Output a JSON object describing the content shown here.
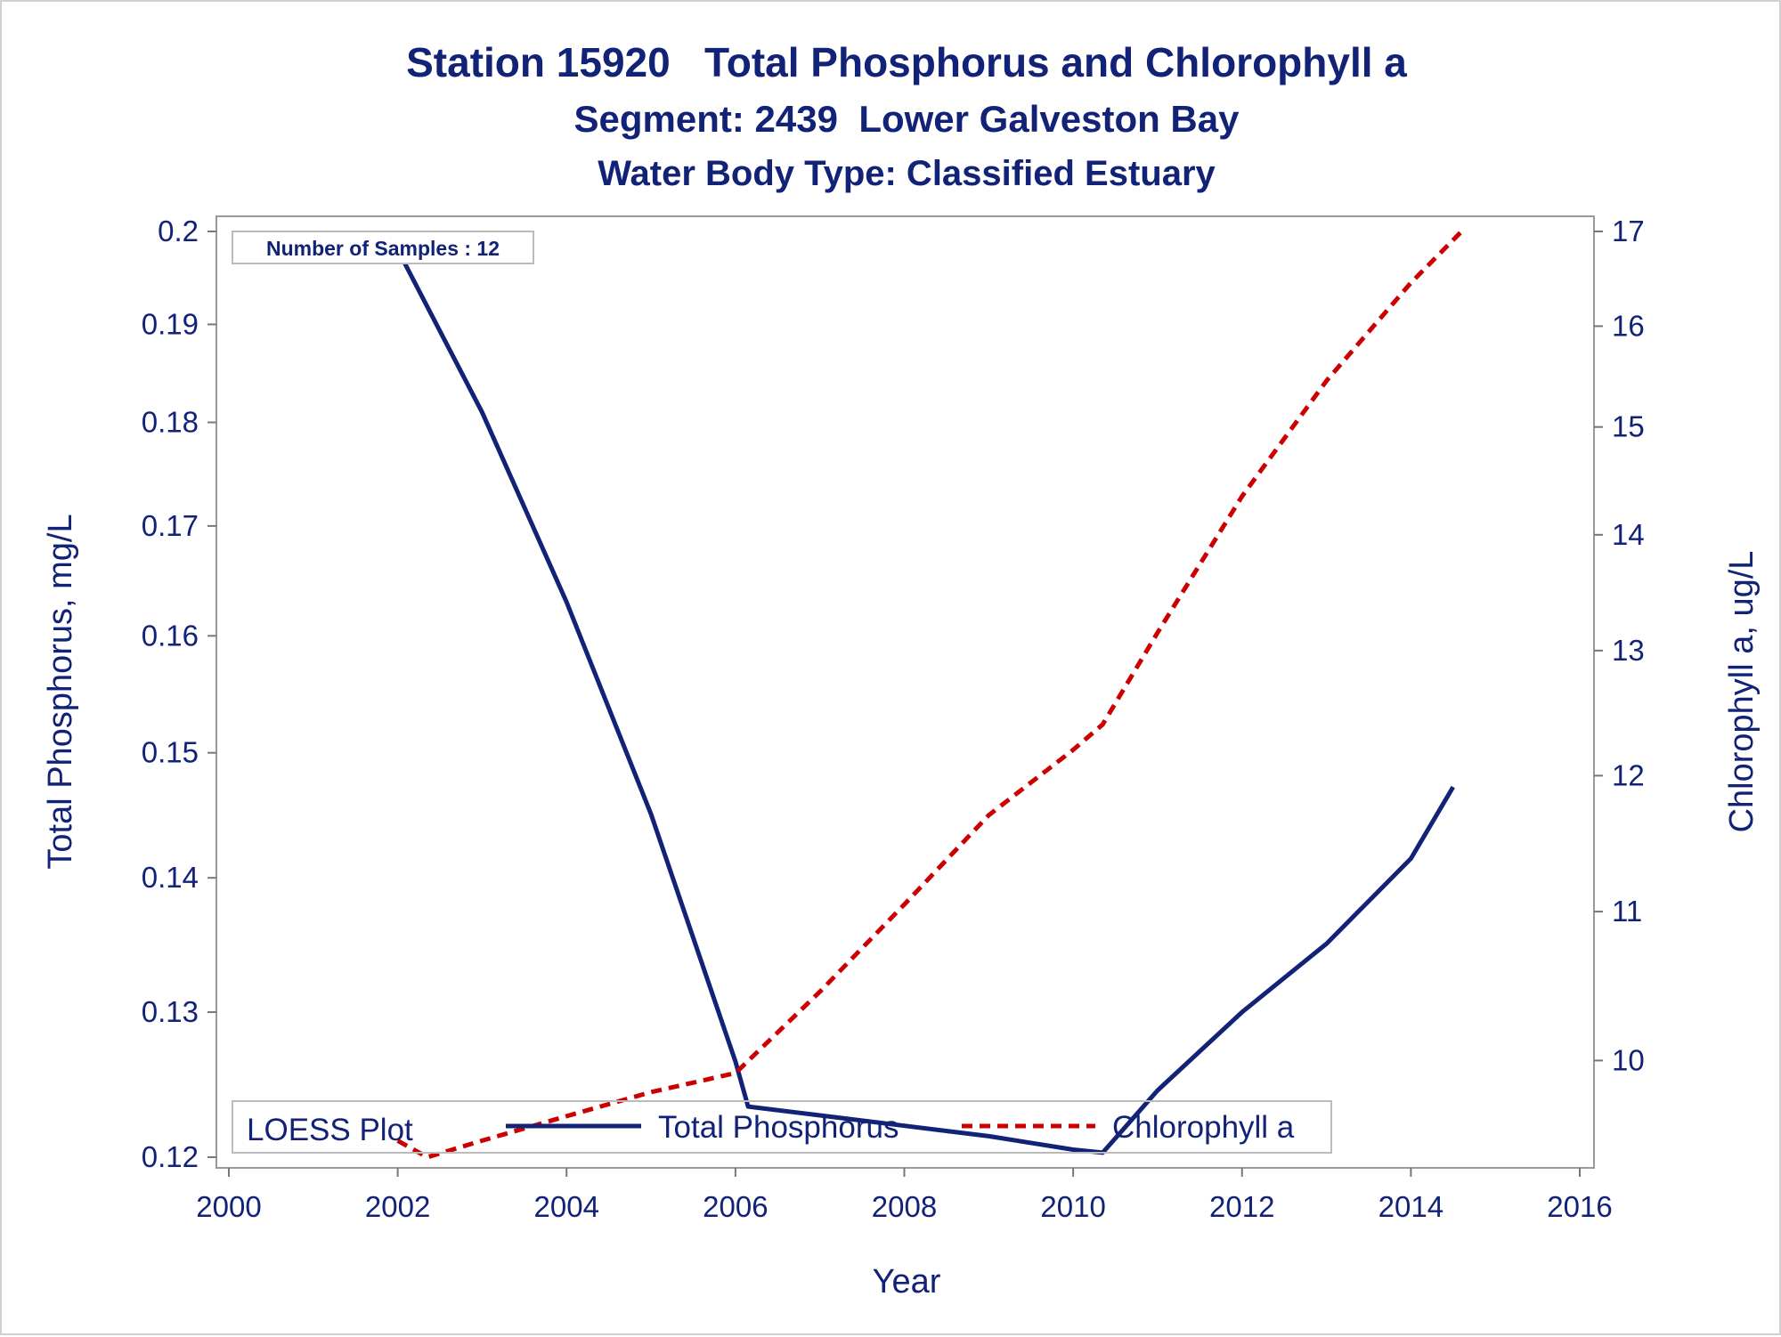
{
  "chart_data": {
    "type": "line",
    "title": "Station 15920   Total Phosphorus and Chlorophyll a",
    "subtitle": "Segment: 2439  Lower Galveston Bay",
    "subtitle2": "Water Body Type: Classified Estuary",
    "xlabel": "Year",
    "ylabel": "Total Phosphorus, mg/L",
    "y2label": "Chlorophyll a, ug/L",
    "xlim": [
      2000,
      2016
    ],
    "ylim": [
      0.12,
      0.2
    ],
    "y2lim": [
      9.4,
      17
    ],
    "yscale": "log",
    "y2scale": "log",
    "x_ticks": [
      "2000",
      "2002",
      "2004",
      "2006",
      "2008",
      "2010",
      "2012",
      "2014",
      "2016"
    ],
    "y_ticks": [
      "0.12",
      "0.13",
      "0.14",
      "0.15",
      "0.16",
      "0.17",
      "0.18",
      "0.19",
      "0.2"
    ],
    "y2_ticks": [
      "10",
      "11",
      "12",
      "13",
      "14",
      "15",
      "16",
      "17"
    ],
    "annotation": "Number of Samples : 12",
    "legend": {
      "title": "LOESS Plot",
      "position": "bottom-inside",
      "entries": [
        "Total Phosphorus",
        "Chlorophyll a"
      ]
    },
    "grid": false,
    "series": [
      {
        "name": "Total Phosphorus",
        "axis": "left",
        "color": "#112277",
        "style": "solid",
        "x": [
          2002.0,
          2003.0,
          2004.0,
          2005.0,
          2006.0,
          2006.15,
          2007.0,
          2008.0,
          2009.0,
          2010.0,
          2010.35,
          2011.0,
          2012.0,
          2013.0,
          2014.0,
          2014.5
        ],
        "y": [
          0.198,
          0.181,
          0.163,
          0.145,
          0.1265,
          0.1234,
          0.1228,
          0.1221,
          0.1214,
          0.1205,
          0.1203,
          0.1245,
          0.13,
          0.135,
          0.1415,
          0.1472
        ]
      },
      {
        "name": "Chlorophyll a",
        "axis": "right",
        "color": "#cc0000",
        "style": "dashed",
        "x": [
          2002.0,
          2002.35,
          2003.0,
          2004.0,
          2005.0,
          2006.0,
          2007.0,
          2008.0,
          2009.0,
          2010.0,
          2010.35,
          2011.0,
          2012.0,
          2013.0,
          2014.0,
          2014.6
        ],
        "y": [
          9.5,
          9.4,
          9.5,
          9.65,
          9.8,
          9.92,
          10.45,
          11.05,
          11.7,
          12.2,
          12.4,
          13.15,
          14.35,
          15.45,
          16.45,
          17.0
        ]
      }
    ]
  }
}
